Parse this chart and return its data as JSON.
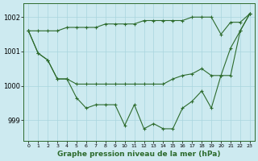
{
  "xlabel": "Graphe pression niveau de la mer (hPa)",
  "background_color": "#cdeaf0",
  "grid_color": "#a8d5de",
  "line_color": "#2d6b2d",
  "x_ticks": [
    0,
    1,
    2,
    3,
    4,
    5,
    6,
    7,
    8,
    9,
    10,
    11,
    12,
    13,
    14,
    15,
    16,
    17,
    18,
    19,
    20,
    21,
    22,
    23
  ],
  "ylim": [
    998.4,
    1002.4
  ],
  "yticks": [
    999,
    1000,
    1001,
    1002
  ],
  "series": [
    [
      1001.6,
      1001.6,
      1001.6,
      1001.6,
      1001.7,
      1001.7,
      1001.7,
      1001.7,
      1001.8,
      1001.8,
      1001.8,
      1001.8,
      1001.9,
      1001.9,
      1001.9,
      1001.9,
      1001.9,
      1002.0,
      1002.0,
      1002.0,
      1001.5,
      1001.85,
      1001.85,
      1002.1
    ],
    [
      1001.6,
      1000.95,
      1000.75,
      1000.2,
      1000.2,
      1000.05,
      1000.05,
      1000.05,
      1000.05,
      1000.05,
      1000.05,
      1000.05,
      1000.05,
      1000.05,
      1000.05,
      1000.2,
      1000.3,
      1000.35,
      1000.5,
      1000.3,
      1000.3,
      1000.3,
      1001.6,
      1002.1
    ],
    [
      1001.6,
      1000.95,
      1000.75,
      1000.2,
      1000.2,
      999.65,
      999.35,
      999.45,
      999.45,
      999.45,
      998.85,
      999.45,
      998.75,
      998.9,
      998.75,
      998.75,
      999.35,
      999.55,
      999.85,
      999.35,
      1000.3,
      1001.1,
      1001.6,
      1002.1
    ]
  ]
}
